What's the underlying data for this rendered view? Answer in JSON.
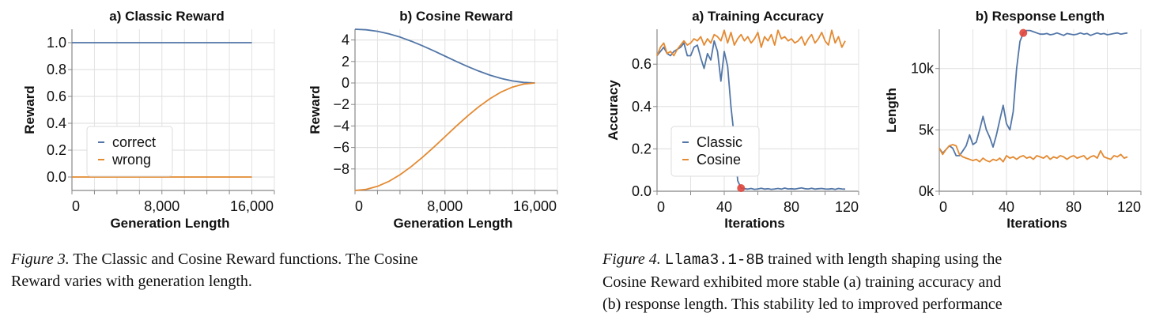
{
  "colors": {
    "series_1": "#5276a7",
    "series_2": "#e48a32",
    "highlight": "#e0453c",
    "grid": "#e2e2e2",
    "axis": "#888888"
  },
  "chart_data": [
    {
      "type": "line",
      "title": "a) Classic Reward",
      "xlabel": "Generation Length",
      "ylabel": "Reward",
      "xlim": [
        0,
        18000
      ],
      "ylim": [
        -0.1,
        1.1
      ],
      "grid": true,
      "legend": "bottom-left",
      "x_ticks": [
        {
          "value": 0,
          "label": "0"
        },
        {
          "value": 8000,
          "label": "8,000"
        },
        {
          "value": 16000,
          "label": "16,000"
        }
      ],
      "y_ticks": [
        {
          "value": 0,
          "label": "0.0"
        },
        {
          "value": 0.2,
          "label": "0.2"
        },
        {
          "value": 0.4,
          "label": "0.4"
        },
        {
          "value": 0.6,
          "label": "0.6"
        },
        {
          "value": 0.8,
          "label": "0.8"
        },
        {
          "value": 1.0,
          "label": "1.0"
        }
      ],
      "series": [
        {
          "name": "correct",
          "x": [
            0,
            16000
          ],
          "y": [
            1.0,
            1.0
          ]
        },
        {
          "name": "wrong",
          "x": [
            0,
            16000
          ],
          "y": [
            0.0,
            0.0
          ]
        }
      ]
    },
    {
      "type": "line",
      "title": "b) Cosine Reward",
      "xlabel": "Generation Length",
      "ylabel": "Reward",
      "xlim": [
        0,
        18000
      ],
      "ylim": [
        -10,
        5
      ],
      "grid": true,
      "x_ticks": [
        {
          "value": 0,
          "label": "0"
        },
        {
          "value": 8000,
          "label": "8,000"
        },
        {
          "value": 16000,
          "label": "16,000"
        }
      ],
      "y_ticks": [
        {
          "value": 4,
          "label": "4"
        },
        {
          "value": 2,
          "label": "2"
        },
        {
          "value": 0,
          "label": "0"
        },
        {
          "value": -2,
          "label": "−2"
        },
        {
          "value": -4,
          "label": "−4"
        },
        {
          "value": -6,
          "label": "−6"
        },
        {
          "value": -8,
          "label": "−8"
        }
      ],
      "series": [
        {
          "x": [
            0,
            1000,
            2000,
            3000,
            4000,
            5000,
            6000,
            7000,
            8000,
            9000,
            10000,
            11000,
            12000,
            13000,
            14000,
            15000,
            16000
          ],
          "y": [
            5,
            4.95,
            4.81,
            4.58,
            4.27,
            3.89,
            3.46,
            2.99,
            2.5,
            2.01,
            1.54,
            1.11,
            0.73,
            0.42,
            0.19,
            0.05,
            0
          ]
        },
        {
          "x": [
            0,
            1000,
            2000,
            3000,
            4000,
            5000,
            6000,
            7000,
            8000,
            9000,
            10000,
            11000,
            12000,
            13000,
            14000,
            15000,
            16000
          ],
          "y": [
            -10,
            -9.9,
            -9.62,
            -9.16,
            -8.54,
            -7.78,
            -6.92,
            -5.98,
            -5,
            -4.02,
            -3.08,
            -2.22,
            -1.46,
            -0.84,
            -0.38,
            -0.1,
            0
          ]
        }
      ]
    },
    {
      "type": "line",
      "title": "a) Training Accuracy",
      "xlabel": "Iterations",
      "ylabel": "Accuracy",
      "xlim": [
        0,
        120
      ],
      "ylim": [
        0,
        0.765
      ],
      "grid": true,
      "legend": "bottom-left",
      "x_ticks": [
        {
          "value": 0,
          "label": "0"
        },
        {
          "value": 40,
          "label": "40"
        },
        {
          "value": 80,
          "label": "80"
        },
        {
          "value": 120,
          "label": "120"
        }
      ],
      "y_ticks": [
        {
          "value": 0,
          "label": "0.0"
        },
        {
          "value": 0.2,
          "label": "0.2"
        },
        {
          "value": 0.4,
          "label": "0.4"
        },
        {
          "value": 0.6,
          "label": "0.6"
        }
      ],
      "x": [
        0,
        2,
        4,
        6,
        8,
        10,
        12,
        14,
        16,
        18,
        20,
        22,
        24,
        26,
        28,
        30,
        32,
        34,
        36,
        38,
        40,
        42,
        44,
        46,
        48,
        50,
        52,
        54,
        56,
        58,
        60,
        62,
        64,
        66,
        68,
        70,
        72,
        74,
        76,
        78,
        80,
        82,
        84,
        86,
        88,
        90,
        92,
        94,
        96,
        98,
        100,
        102,
        104,
        106,
        108,
        110,
        112
      ],
      "series": [
        {
          "name": "Classic",
          "y": [
            0.64,
            0.66,
            0.68,
            0.65,
            0.64,
            0.66,
            0.67,
            0.68,
            0.7,
            0.64,
            0.64,
            0.68,
            0.69,
            0.63,
            0.58,
            0.65,
            0.62,
            0.71,
            0.66,
            0.52,
            0.66,
            0.59,
            0.4,
            0.25,
            0.05,
            0.015,
            0.012,
            0.01,
            0.013,
            0.009,
            0.011,
            0.014,
            0.01,
            0.012,
            0.009,
            0.011,
            0.013,
            0.01,
            0.015,
            0.011,
            0.012,
            0.01,
            0.013,
            0.016,
            0.012,
            0.011,
            0.014,
            0.01,
            0.012,
            0.013,
            0.011,
            0.01,
            0.012,
            0.009,
            0.013,
            0.011,
            0.01
          ]
        },
        {
          "name": "Cosine",
          "y": [
            0.64,
            0.68,
            0.7,
            0.65,
            0.66,
            0.64,
            0.67,
            0.69,
            0.71,
            0.69,
            0.7,
            0.72,
            0.71,
            0.73,
            0.69,
            0.72,
            0.7,
            0.74,
            0.73,
            0.71,
            0.76,
            0.7,
            0.75,
            0.69,
            0.72,
            0.74,
            0.71,
            0.73,
            0.7,
            0.72,
            0.75,
            0.68,
            0.73,
            0.71,
            0.74,
            0.69,
            0.76,
            0.72,
            0.73,
            0.71,
            0.72,
            0.7,
            0.71,
            0.73,
            0.69,
            0.72,
            0.74,
            0.7,
            0.72,
            0.75,
            0.71,
            0.69,
            0.76,
            0.7,
            0.73,
            0.68,
            0.71
          ]
        }
      ],
      "highlight_point": {
        "x": 50,
        "y": 0.015
      }
    },
    {
      "type": "line",
      "title": "b) Response Length",
      "xlabel": "Iterations",
      "ylabel": "Length",
      "xlim": [
        0,
        120
      ],
      "ylim": [
        0,
        13200
      ],
      "grid": true,
      "x_ticks": [
        {
          "value": 0,
          "label": "0"
        },
        {
          "value": 40,
          "label": "40"
        },
        {
          "value": 80,
          "label": "80"
        },
        {
          "value": 120,
          "label": "120"
        }
      ],
      "y_ticks": [
        {
          "value": 0,
          "label": "0k"
        },
        {
          "value": 5000,
          "label": "5k"
        },
        {
          "value": 10000,
          "label": "10k"
        }
      ],
      "x": [
        0,
        2,
        4,
        6,
        8,
        10,
        12,
        14,
        16,
        18,
        20,
        22,
        24,
        26,
        28,
        30,
        32,
        34,
        36,
        38,
        40,
        42,
        44,
        46,
        48,
        50,
        52,
        54,
        56,
        58,
        60,
        62,
        64,
        66,
        68,
        70,
        72,
        74,
        76,
        78,
        80,
        82,
        84,
        86,
        88,
        90,
        92,
        94,
        96,
        98,
        100,
        102,
        104,
        106,
        108,
        110,
        112
      ],
      "series": [
        {
          "name": "Classic",
          "y": [
            3500,
            3100,
            3400,
            3700,
            3500,
            2900,
            2900,
            3300,
            3700,
            4600,
            3800,
            4000,
            5000,
            6100,
            5000,
            4400,
            3600,
            4600,
            5800,
            7000,
            5500,
            5000,
            6500,
            10000,
            12200,
            12900,
            13100,
            13100,
            13000,
            12900,
            12800,
            12800,
            12850,
            12750,
            12800,
            12900,
            12800,
            12700,
            12850,
            12800,
            12750,
            12800,
            12900,
            12800,
            12850,
            12700,
            12800,
            12900,
            12800,
            12850,
            12750,
            12800,
            12850,
            12900,
            12800,
            12850,
            12900
          ]
        },
        {
          "name": "Cosine",
          "y": [
            3500,
            3000,
            3400,
            3700,
            3800,
            3700,
            3000,
            2800,
            2700,
            2600,
            2500,
            2600,
            2400,
            2700,
            2500,
            2400,
            2600,
            2500,
            2700,
            2400,
            2900,
            2700,
            2800,
            2600,
            2800,
            2900,
            2700,
            2800,
            2600,
            2900,
            2800,
            2700,
            2900,
            2600,
            2800,
            2700,
            2900,
            2800,
            2600,
            2800,
            2900,
            2700,
            2800,
            2900,
            2600,
            2800,
            2900,
            2700,
            3300,
            2800,
            2700,
            2600,
            2900,
            2800,
            3000,
            2700,
            2800
          ]
        }
      ],
      "highlight_point": {
        "x": 50,
        "y": 12900
      }
    }
  ],
  "captions": {
    "fig3": {
      "label": "Figure 3.",
      "line1": " The Classic and Cosine Reward functions. The Cosine",
      "line2": "Reward varies with generation length."
    },
    "fig4": {
      "label": "Figure 4.",
      "code": "Llama3.1-8B",
      "line1": " trained with length shaping using the",
      "line2": "Cosine Reward exhibited more stable (a) training accuracy and",
      "line3": "(b) response length. This stability led to improved performance"
    }
  }
}
